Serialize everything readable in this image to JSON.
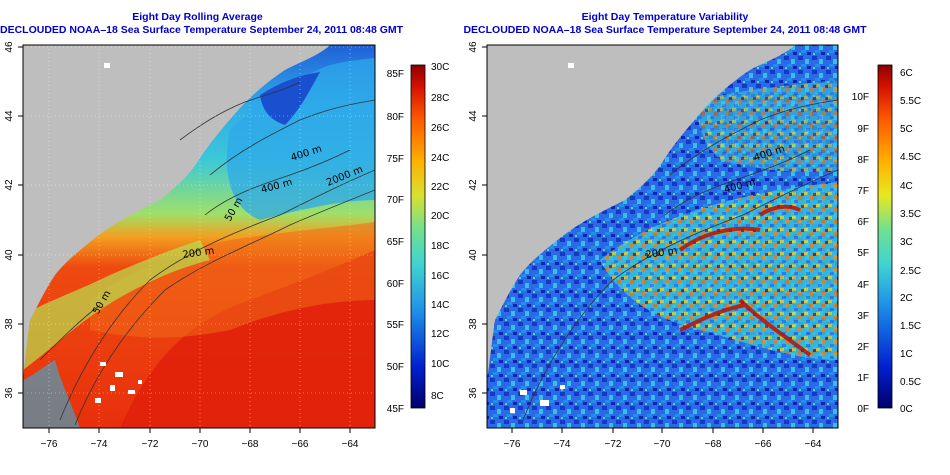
{
  "panels": [
    {
      "title_line1": "Eight Day Rolling Average",
      "title_line2": "DECLOUDED NOAA–18 Sea Surface Temperature September 24, 2011 08:48 GMT",
      "x_ticks": [
        "−76",
        "−74",
        "−72",
        "−70",
        "−68",
        "−66",
        "−64"
      ],
      "y_ticks": [
        "46",
        "44",
        "42",
        "40",
        "38",
        "36"
      ],
      "contour_labels": [
        "400 m",
        "400 m",
        "2000 m",
        "200 m",
        "200 m",
        "50 m",
        "50 m"
      ],
      "colorbar_left": [
        "85F",
        "80F",
        "75F",
        "70F",
        "65F",
        "60F",
        "55F",
        "50F",
        "45F"
      ],
      "colorbar_right": [
        "30C",
        "28C",
        "26C",
        "24C",
        "22C",
        "20C",
        "18C",
        "16C",
        "14C",
        "12C",
        "10C",
        "8C"
      ]
    },
    {
      "title_line1": "Eight Day Temperature Variability",
      "title_line2": "DECLOUDED NOAA–18 Sea Surface Temperature September 24, 2011 08:48 GMT",
      "x_ticks": [
        "−76",
        "−74",
        "−72",
        "−70",
        "−68",
        "−66",
        "−64"
      ],
      "y_ticks": [
        "46",
        "44",
        "42",
        "40",
        "38",
        "36"
      ],
      "contour_labels": [
        "400 m",
        "400 m",
        "200 m"
      ],
      "colorbar_left": [
        "10F",
        "9F",
        "8F",
        "7F",
        "6F",
        "5F",
        "4F",
        "3F",
        "2F",
        "1F",
        "0F"
      ],
      "colorbar_right": [
        "6C",
        "5.5C",
        "5C",
        "4.5C",
        "4C",
        "3.5C",
        "3C",
        "2.5C",
        "2C",
        "1.5C",
        "1C",
        "0.5C",
        "0C"
      ]
    }
  ],
  "colors": {
    "title": "#0000cc",
    "land": "#bebebe",
    "warm": "#e62a0a",
    "cool": "#38b8e0"
  }
}
